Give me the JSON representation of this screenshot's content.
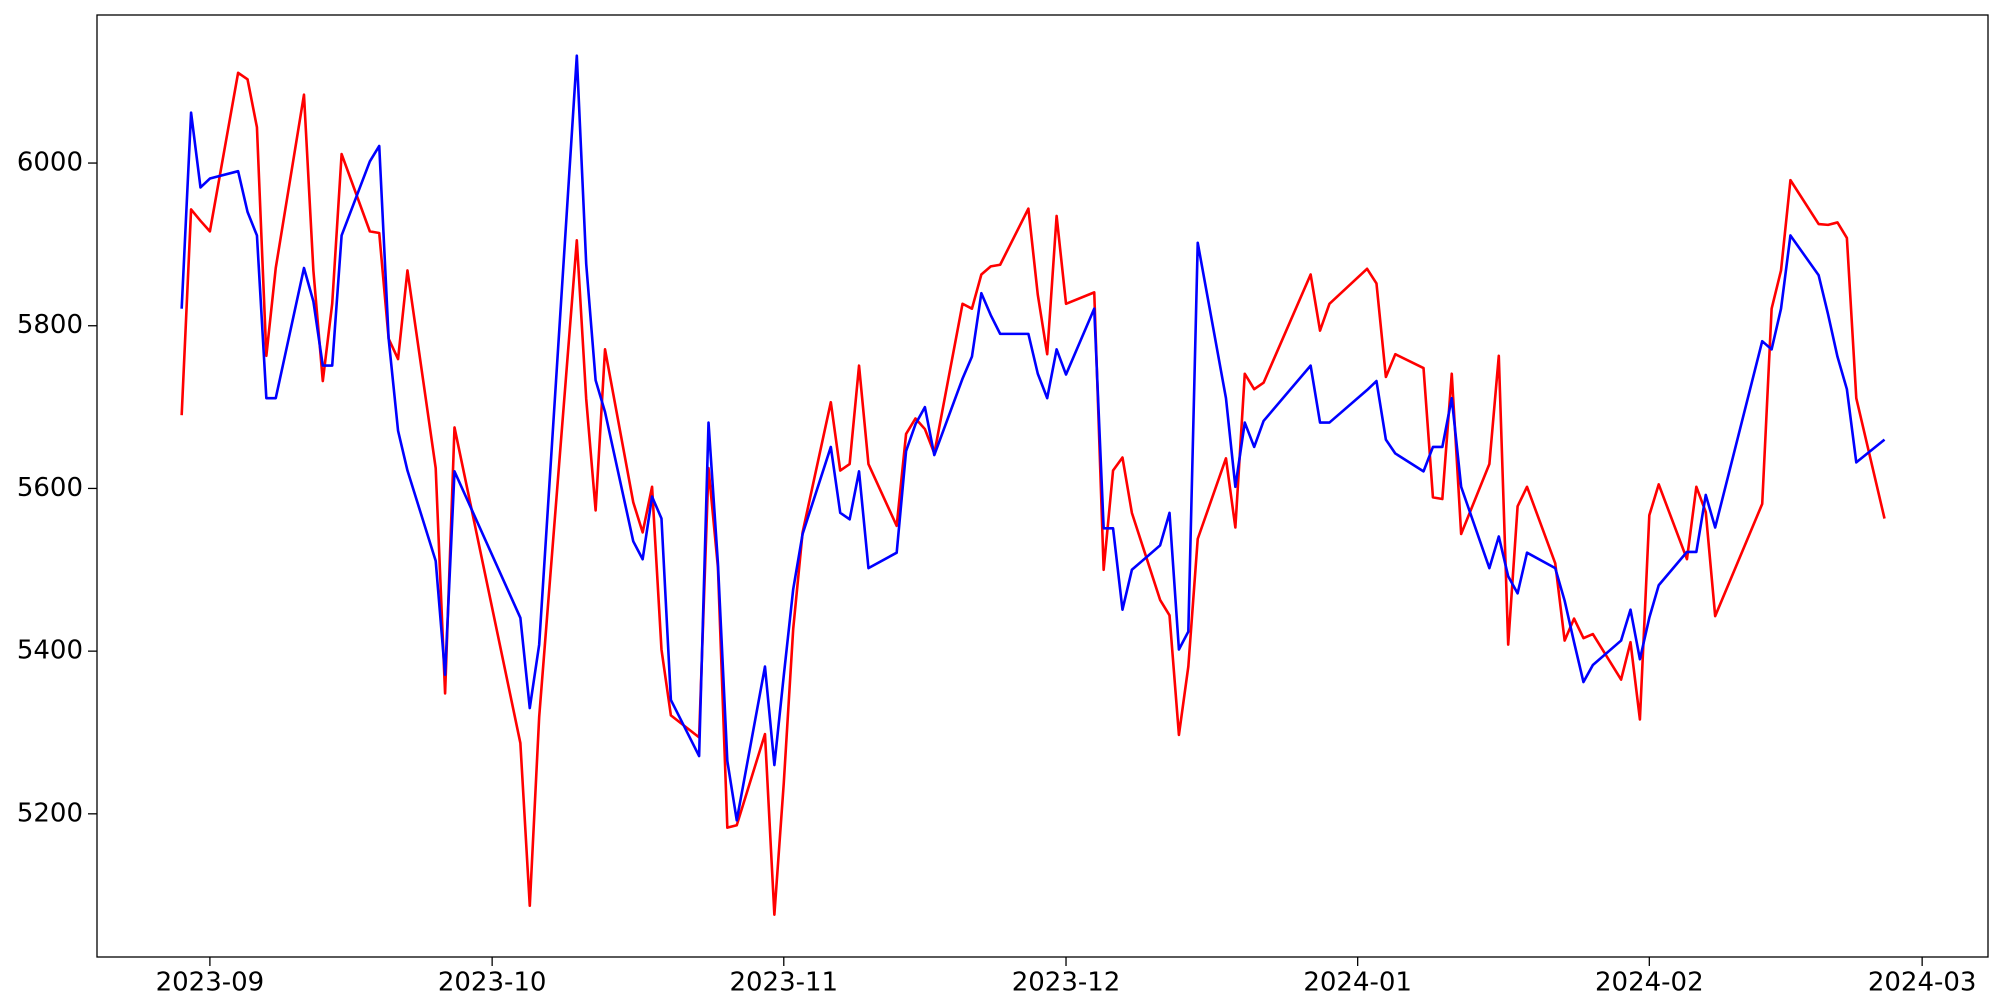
{
  "chart_data": {
    "type": "line",
    "x": [
      "2023-08-29",
      "2023-08-30",
      "2023-08-31",
      "2023-09-01",
      "2023-09-04",
      "2023-09-05",
      "2023-09-06",
      "2023-09-07",
      "2023-09-08",
      "2023-09-11",
      "2023-09-12",
      "2023-09-13",
      "2023-09-14",
      "2023-09-15",
      "2023-09-18",
      "2023-09-19",
      "2023-09-20",
      "2023-09-21",
      "2023-09-22",
      "2023-09-25",
      "2023-09-26",
      "2023-09-27",
      "2023-10-04",
      "2023-10-05",
      "2023-10-06",
      "2023-10-10",
      "2023-10-11",
      "2023-10-12",
      "2023-10-13",
      "2023-10-16",
      "2023-10-17",
      "2023-10-18",
      "2023-10-19",
      "2023-10-20",
      "2023-10-23",
      "2023-10-24",
      "2023-10-25",
      "2023-10-26",
      "2023-10-27",
      "2023-10-30",
      "2023-10-31",
      "2023-11-01",
      "2023-11-02",
      "2023-11-03",
      "2023-11-06",
      "2023-11-07",
      "2023-11-08",
      "2023-11-09",
      "2023-11-10",
      "2023-11-13",
      "2023-11-14",
      "2023-11-15",
      "2023-11-16",
      "2023-11-17",
      "2023-11-20",
      "2023-11-21",
      "2023-11-22",
      "2023-11-23",
      "2023-11-24",
      "2023-11-27",
      "2023-11-28",
      "2023-11-29",
      "2023-11-30",
      "2023-12-01",
      "2023-12-04",
      "2023-12-05",
      "2023-12-06",
      "2023-12-07",
      "2023-12-08",
      "2023-12-11",
      "2023-12-12",
      "2023-12-13",
      "2023-12-14",
      "2023-12-15",
      "2023-12-18",
      "2023-12-19",
      "2023-12-20",
      "2023-12-21",
      "2023-12-22",
      "2023-12-27",
      "2023-12-28",
      "2023-12-29",
      "2024-01-02",
      "2024-01-03",
      "2024-01-04",
      "2024-01-05",
      "2024-01-08",
      "2024-01-09",
      "2024-01-10",
      "2024-01-11",
      "2024-01-12",
      "2024-01-15",
      "2024-01-16",
      "2024-01-17",
      "2024-01-18",
      "2024-01-19",
      "2024-01-22",
      "2024-01-23",
      "2024-01-24",
      "2024-01-25",
      "2024-01-26",
      "2024-01-29",
      "2024-01-30",
      "2024-01-31",
      "2024-02-01",
      "2024-02-02",
      "2024-02-05",
      "2024-02-06",
      "2024-02-07",
      "2024-02-08",
      "2024-02-13",
      "2024-02-14",
      "2024-02-15",
      "2024-02-16",
      "2024-02-19",
      "2024-02-20",
      "2024-02-21",
      "2024-02-22",
      "2024-02-23",
      "2024-02-26"
    ],
    "series": [
      {
        "color": "#ff0000",
        "values": [
          5690,
          5943,
          5929,
          5916,
          6111,
          6103,
          6044,
          5763,
          5871,
          6084,
          5868,
          5732,
          5827,
          6011,
          5916,
          5914,
          5784,
          5759,
          5868,
          5625,
          5348,
          5675,
          5287,
          5087,
          5319,
          5905,
          5710,
          5573,
          5771,
          5583,
          5546,
          5602,
          5402,
          5321,
          5294,
          5625,
          5503,
          5183,
          5186,
          5298,
          5076,
          5238,
          5427,
          5546,
          5706,
          5622,
          5630,
          5751,
          5630,
          5554,
          5667,
          5686,
          5673,
          5643,
          5827,
          5821,
          5863,
          5873,
          5875,
          5944,
          5838,
          5765,
          5935,
          5827,
          5841,
          5500,
          5622,
          5638,
          5570,
          5463,
          5444,
          5297,
          5381,
          5538,
          5637,
          5552,
          5741,
          5722,
          5730,
          5863,
          5794,
          5827,
          5870,
          5852,
          5737,
          5765,
          5748,
          5589,
          5587,
          5741,
          5544,
          5630,
          5763,
          5408,
          5578,
          5602,
          5508,
          5413,
          5440,
          5416,
          5421,
          5365,
          5411,
          5316,
          5567,
          5605,
          5513,
          5602,
          5571,
          5443,
          5581,
          5821,
          5868,
          5979,
          5925,
          5924,
          5927,
          5908,
          5711,
          5563
        ]
      },
      {
        "color": "#0000ff",
        "values": [
          5821,
          6062,
          5970,
          5981,
          5990,
          5940,
          5911,
          5711,
          5711,
          5871,
          5830,
          5751,
          5751,
          5911,
          6002,
          6021,
          5784,
          5671,
          5622,
          5511,
          5371,
          5621,
          5441,
          5330,
          5408,
          6132,
          5876,
          5733,
          5694,
          5535,
          5513,
          5590,
          5563,
          5340,
          5271,
          5681,
          5508,
          5265,
          5192,
          5381,
          5260,
          5370,
          5476,
          5544,
          5651,
          5570,
          5562,
          5621,
          5502,
          5521,
          5646,
          5679,
          5700,
          5641,
          5735,
          5762,
          5840,
          5813,
          5790,
          5790,
          5741,
          5711,
          5771,
          5740,
          5821,
          5551,
          5551,
          5451,
          5500,
          5530,
          5570,
          5402,
          5424,
          5902,
          5711,
          5602,
          5681,
          5651,
          5683,
          5751,
          5681,
          5681,
          5721,
          5732,
          5660,
          5643,
          5621,
          5651,
          5651,
          5711,
          5602,
          5502,
          5541,
          5492,
          5471,
          5521,
          5502,
          5462,
          5411,
          5362,
          5383,
          5413,
          5451,
          5390,
          5441,
          5481,
          5522,
          5522,
          5592,
          5552,
          5781,
          5771,
          5821,
          5911,
          5862,
          5814,
          5762,
          5722,
          5632,
          5660
        ]
      }
    ],
    "xlim": [
      "2023-08-20",
      "2024-03-08"
    ],
    "xticks": [
      {
        "value": "2023-09-01",
        "label": "2023-09"
      },
      {
        "value": "2023-10-01",
        "label": "2023-10"
      },
      {
        "value": "2023-11-01",
        "label": "2023-11"
      },
      {
        "value": "2023-12-01",
        "label": "2023-12"
      },
      {
        "value": "2024-01-01",
        "label": "2024-01"
      },
      {
        "value": "2024-02-01",
        "label": "2024-02"
      },
      {
        "value": "2024-03-01",
        "label": "2024-03"
      }
    ],
    "ylim": [
      5024,
      6182
    ],
    "yticks": [
      5200,
      5400,
      5600,
      5800,
      6000
    ],
    "grid": false
  }
}
